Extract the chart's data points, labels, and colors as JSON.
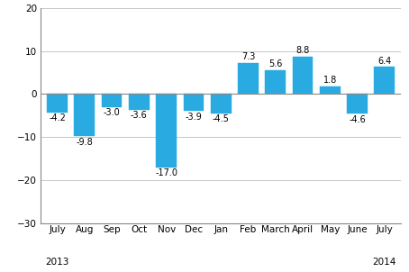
{
  "categories": [
    "July",
    "Aug",
    "Sep",
    "Oct",
    "Nov",
    "Dec",
    "Jan",
    "Feb",
    "March",
    "April",
    "May",
    "June",
    "July"
  ],
  "values": [
    -4.2,
    -9.8,
    -3.0,
    -3.6,
    -17.0,
    -3.9,
    -4.5,
    7.3,
    5.6,
    8.8,
    1.8,
    -4.6,
    6.4
  ],
  "bar_color": "#29ABE2",
  "bar_edge_color": "#29ABE2",
  "ylim": [
    -30,
    20
  ],
  "yticks": [
    -30,
    -20,
    -10,
    0,
    10,
    20
  ],
  "label_fontsize": 7.5,
  "value_label_fontsize": 7.0,
  "background_color": "#ffffff",
  "grid_color": "#b0b0b0",
  "spine_color": "#888888"
}
